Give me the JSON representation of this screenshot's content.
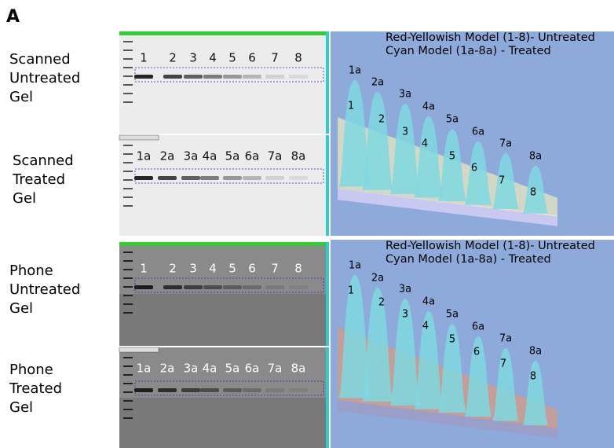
{
  "panel_label": "A",
  "rows": [
    {
      "label": [
        "Scanned",
        "Untreated",
        "Gel"
      ],
      "lanes": [
        "1",
        "2",
        "3",
        "4",
        "5",
        "6",
        "7",
        "8"
      ]
    },
    {
      "label": [
        "Scanned",
        "Treated",
        "Gel"
      ],
      "lanes": [
        "1a",
        "2a",
        "3a",
        "4a",
        "5a",
        "6a",
        "7a",
        "8a"
      ]
    },
    {
      "label": [
        "Phone",
        "Untreated",
        "Gel"
      ],
      "lanes": [
        "1",
        "2",
        "3",
        "4",
        "5",
        "6",
        "7",
        "8"
      ]
    },
    {
      "label": [
        "Phone",
        "Treated",
        "Gel"
      ],
      "lanes": [
        "1a",
        "2a",
        "3a",
        "4a",
        "5a",
        "6a",
        "7a",
        "8a"
      ]
    }
  ],
  "plots": [
    {
      "legend": [
        "Red-Yellowish Model  (1-8)- Untreated",
        "Cyan Model (1a-8a) - Treated"
      ],
      "treated_peaks": [
        "1a",
        "2a",
        "3a",
        "4a",
        "5a",
        "6a",
        "7a",
        "8a"
      ],
      "untreated_peaks": [
        "1",
        "2",
        "3",
        "4",
        "5",
        "6",
        "7",
        "8"
      ]
    },
    {
      "legend": [
        "Red-Yellowish Model  (1-8)- Untreated",
        "Cyan Model (1a-8a) - Treated"
      ],
      "treated_peaks": [
        "1a",
        "2a",
        "3a",
        "4a",
        "5a",
        "6a",
        "7a",
        "8a"
      ],
      "untreated_peaks": [
        "1",
        "2",
        "3",
        "4",
        "5",
        "6",
        "7",
        "8"
      ]
    }
  ]
}
